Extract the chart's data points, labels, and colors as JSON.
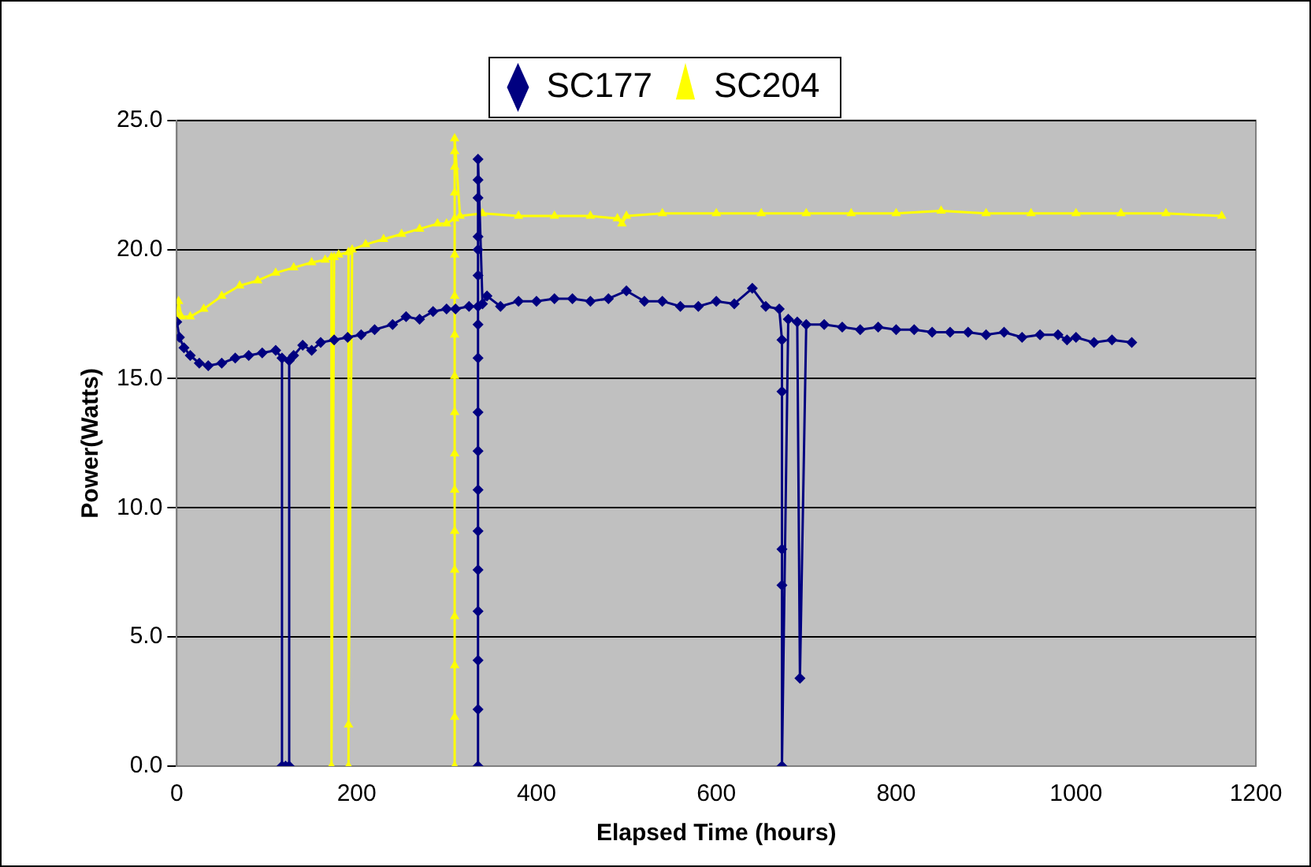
{
  "chart_data": {
    "type": "line",
    "xlabel": "Elapsed Time (hours)",
    "ylabel": "Power(Watts)",
    "xlim": [
      0,
      1200
    ],
    "xticks": [
      0,
      200,
      400,
      600,
      800,
      1000,
      1200
    ],
    "ylim": [
      0,
      25
    ],
    "yticks": [
      {
        "value": 0,
        "label": "0.0"
      },
      {
        "value": 5,
        "label": "5.0"
      },
      {
        "value": 10,
        "label": "10.0"
      },
      {
        "value": 15,
        "label": "15.0"
      },
      {
        "value": 20,
        "label": "20.0"
      },
      {
        "value": 25,
        "label": "25.0"
      }
    ],
    "grid": "y",
    "legend": "top",
    "series": [
      {
        "name": "SC177",
        "color": "#000080",
        "marker": "diamond",
        "x": [
          0,
          3,
          8,
          15,
          25,
          35,
          50,
          65,
          80,
          95,
          110,
          117,
          117,
          121,
          125,
          125,
          130,
          140,
          150,
          160,
          175,
          190,
          205,
          220,
          240,
          255,
          270,
          285,
          300,
          310,
          325,
          335,
          335,
          335,
          335,
          335,
          335,
          335,
          335,
          335,
          335,
          335,
          335,
          335,
          335,
          335,
          335,
          335,
          335,
          340,
          345,
          360,
          380,
          400,
          420,
          440,
          460,
          480,
          500,
          520,
          540,
          560,
          580,
          600,
          620,
          640,
          655,
          670,
          673,
          673,
          673,
          673,
          673,
          680,
          690,
          693,
          700,
          720,
          740,
          760,
          780,
          800,
          820,
          840,
          860,
          880,
          900,
          920,
          940,
          960,
          980,
          990,
          1000,
          1020,
          1040,
          1062
        ],
        "values": [
          17.2,
          16.6,
          16.2,
          15.9,
          15.6,
          15.5,
          15.6,
          15.8,
          15.9,
          16.0,
          16.1,
          15.8,
          0,
          0,
          0,
          15.7,
          15.9,
          16.3,
          16.1,
          16.4,
          16.5,
          16.6,
          16.7,
          16.9,
          17.1,
          17.4,
          17.3,
          17.6,
          17.7,
          17.7,
          17.8,
          17.8,
          0,
          2.2,
          4.1,
          6.0,
          7.6,
          9.1,
          10.7,
          12.2,
          13.7,
          15.8,
          17.1,
          19.0,
          20.0,
          20.5,
          22.0,
          22.7,
          23.5,
          17.9,
          18.2,
          17.8,
          18.0,
          18.0,
          18.1,
          18.1,
          18.0,
          18.1,
          18.4,
          18.0,
          18.0,
          17.8,
          17.8,
          18.0,
          17.9,
          18.5,
          17.8,
          17.7,
          16.5,
          14.5,
          8.4,
          7.0,
          0,
          17.3,
          17.2,
          3.4,
          17.1,
          17.1,
          17.0,
          16.9,
          17.0,
          16.9,
          16.9,
          16.8,
          16.8,
          16.8,
          16.7,
          16.8,
          16.6,
          16.7,
          16.7,
          16.5,
          16.6,
          16.4,
          16.5,
          16.4
        ]
      },
      {
        "name": "SC204",
        "color": "#ffff00",
        "marker": "triangle",
        "x": [
          0,
          2,
          5,
          15,
          30,
          50,
          70,
          90,
          110,
          130,
          150,
          165,
          172,
          172,
          175,
          180,
          191,
          191,
          191,
          195,
          210,
          230,
          250,
          270,
          290,
          300,
          309,
          309,
          309,
          309,
          309,
          309,
          309,
          309,
          309,
          309,
          309,
          309,
          309,
          309,
          309,
          309,
          309,
          309,
          315,
          340,
          380,
          420,
          460,
          490,
          495,
          500,
          540,
          600,
          650,
          700,
          750,
          800,
          850,
          900,
          950,
          1000,
          1050,
          1100,
          1162
        ],
        "values": [
          17.5,
          18.0,
          17.4,
          17.4,
          17.7,
          18.2,
          18.6,
          18.8,
          19.1,
          19.3,
          19.5,
          19.6,
          19.7,
          0,
          19.7,
          19.8,
          19.9,
          0,
          1.6,
          20.0,
          20.2,
          20.4,
          20.6,
          20.8,
          21.0,
          21.0,
          21.2,
          0,
          1.9,
          3.9,
          5.8,
          7.6,
          9.1,
          10.7,
          12.1,
          13.7,
          15.1,
          16.7,
          18.2,
          19.8,
          22.2,
          23.2,
          23.8,
          24.3,
          21.3,
          21.4,
          21.3,
          21.3,
          21.3,
          21.2,
          21.0,
          21.3,
          21.4,
          21.4,
          21.4,
          21.4,
          21.4,
          21.4,
          21.5,
          21.4,
          21.4,
          21.4,
          21.4,
          21.4,
          21.3
        ]
      }
    ]
  }
}
